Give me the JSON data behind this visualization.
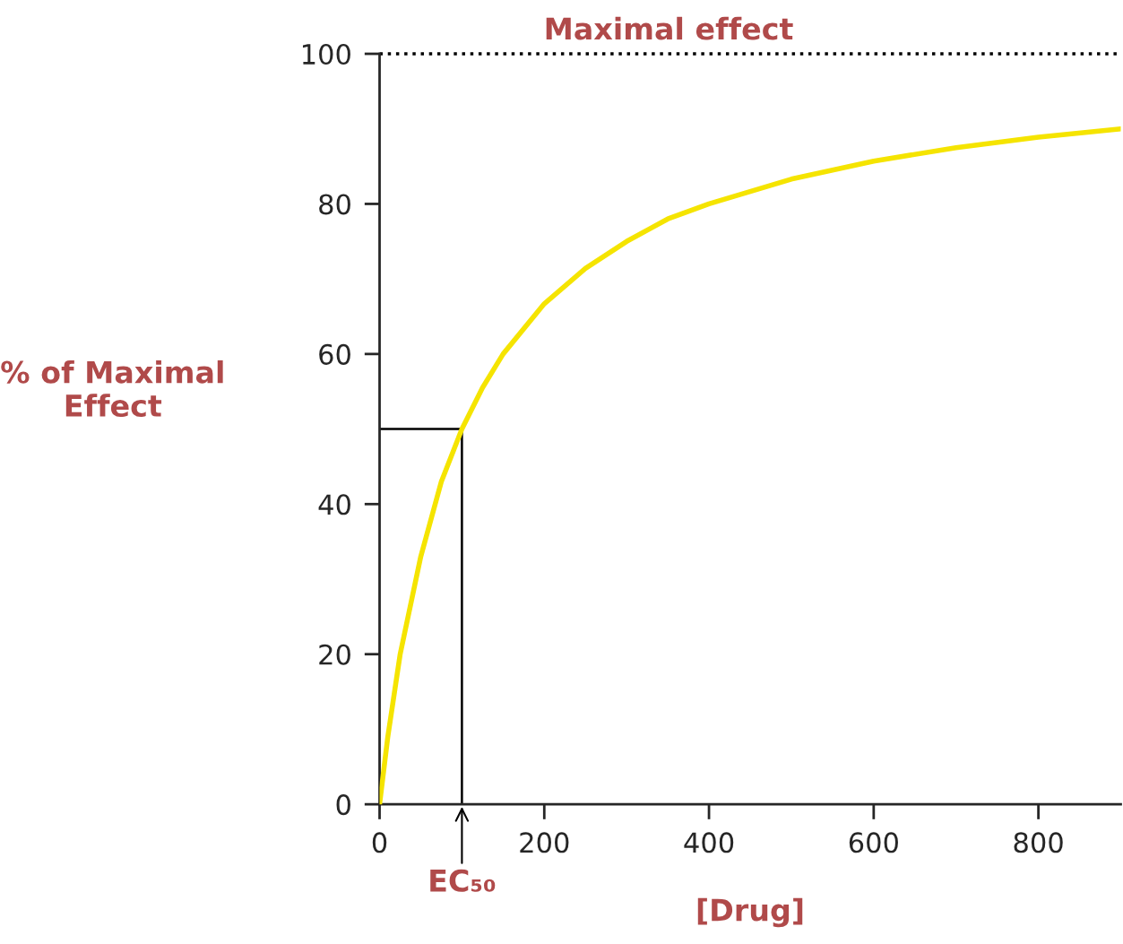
{
  "chart_data": {
    "type": "line",
    "xlabel": "[Drug]",
    "ylabel": "% of Maximal\nEffect",
    "xlim": [
      0,
      900
    ],
    "xticks": [
      0,
      200,
      400,
      600,
      800
    ],
    "ylim": [
      0,
      100
    ],
    "yticks": [
      0,
      20,
      40,
      60,
      80,
      100
    ],
    "grid": false,
    "marker": "none",
    "line_style": "solid",
    "series": [
      {
        "color": "#f5e400",
        "x": [
          0,
          10,
          25,
          50,
          75,
          100,
          125,
          150,
          200,
          250,
          300,
          350,
          400,
          500,
          600,
          700,
          800,
          900
        ],
        "values": [
          0,
          9,
          20,
          33,
          43,
          50,
          55.5,
          60,
          66.7,
          71.4,
          75,
          78,
          80,
          83.3,
          85.7,
          87.5,
          88.9,
          90
        ]
      },
      {
        "color": "#000000",
        "x": [
          0,
          100,
          100
        ],
        "values": [
          50,
          50,
          0
        ]
      }
    ],
    "ref_lines": [
      {
        "axis": "y",
        "value": 100,
        "label": "Maximal effect",
        "line_style": "dotted",
        "color": "#000000"
      }
    ],
    "annotations": [
      {
        "text": "EC₅₀",
        "x": 100,
        "y": 0
      }
    ]
  }
}
